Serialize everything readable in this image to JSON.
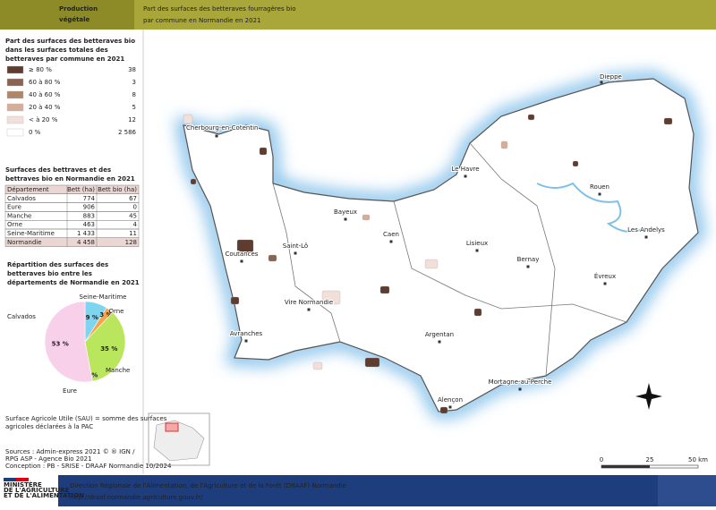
{
  "header": {
    "section": [
      "Production",
      "végétale"
    ],
    "title": [
      "Part des surfaces des betteraves fourragères bio",
      "par commune en Normandie en 2021"
    ]
  },
  "legend": {
    "title": [
      "Part des surfaces des betteraves bio",
      "dans les surfaces totales des",
      "betteraves par commune en 2021"
    ],
    "classes": [
      {
        "label": "≥ 80 %",
        "count": "38",
        "color": "#5e3c2f"
      },
      {
        "label": "60 à 80 %",
        "count": "3",
        "color": "#8a6453"
      },
      {
        "label": "40 à 60 %",
        "count": "8",
        "color": "#b08669"
      },
      {
        "label": "20 à 40 %",
        "count": "5",
        "color": "#d6ad99"
      },
      {
        "label": "< à 20 %",
        "count": "12",
        "color": "#f2dfd9"
      },
      {
        "label": "0 %",
        "count": "2 586",
        "color": "#ffffff"
      }
    ]
  },
  "table": {
    "title": [
      "Surfaces des bettraves et des",
      "bettraves bio en Normandie en 2021"
    ],
    "header": [
      "Département",
      "Bett (ha)",
      "Bett bio (ha)"
    ],
    "rows": [
      [
        "Calvados",
        "774",
        "67"
      ],
      [
        "Eure",
        "906",
        "0"
      ],
      [
        "Manche",
        "883",
        "45"
      ],
      [
        "Orne",
        "463",
        "4"
      ],
      [
        "Seine-Maritime",
        "1 433",
        "11"
      ],
      [
        "Normandie",
        "4 458",
        "128"
      ]
    ]
  },
  "pie_chart": {
    "type": "pie",
    "title": [
      "Répartition des surfaces des",
      "betteraves bio entre les",
      "départements de Normandie en 2021"
    ],
    "categories": [
      "Seine-Maritime",
      "Orne",
      "Manche",
      "Eure",
      "Calvados"
    ],
    "values": [
      9,
      3,
      35,
      0,
      53
    ],
    "value_labels": [
      "9 %",
      "3 %",
      "35 %",
      "0 %",
      "53 %"
    ],
    "colors": [
      "#7fd4ef",
      "#f4a54c",
      "#b9e65c",
      "#d9d9d9",
      "#f8d0ea"
    ]
  },
  "cities": [
    "Dieppe",
    "Cherbourg-en-Cotentin",
    "Le Havre",
    "Rouen",
    "Bayeux",
    "Caen",
    "Lisieux",
    "Saint-Lô",
    "Les Andelys",
    "Coutances",
    "Bernay",
    "Évreux",
    "Vire Normandie",
    "Avranches",
    "Argentan",
    "Mortagne-au-Perche",
    "Alençon"
  ],
  "notes": [
    "Surface Agricole Utile (SAU) = somme des surfaces",
    "agricoles déclarées à la PAC"
  ],
  "sources": [
    "Sources       : Admin-express 2021 © ® IGN /",
    "                    RPG ASP - Agence Bio 2021",
    "Conception : PB - SRISE - DRAAF Normandie 10/2024"
  ],
  "scale": [
    "0",
    "25",
    "50 km"
  ],
  "footer": {
    "ministry": [
      "MINISTÈRE",
      "DE L'AGRICULTURE",
      "ET DE L'ALIMENTATION"
    ],
    "org": "Direction Régionale de l'Alimentation, de l'Agriculture et de la Forêt (DRAAF) Normandie",
    "url": "http://draaf.normandie.agriculture.gouv.fr/"
  }
}
